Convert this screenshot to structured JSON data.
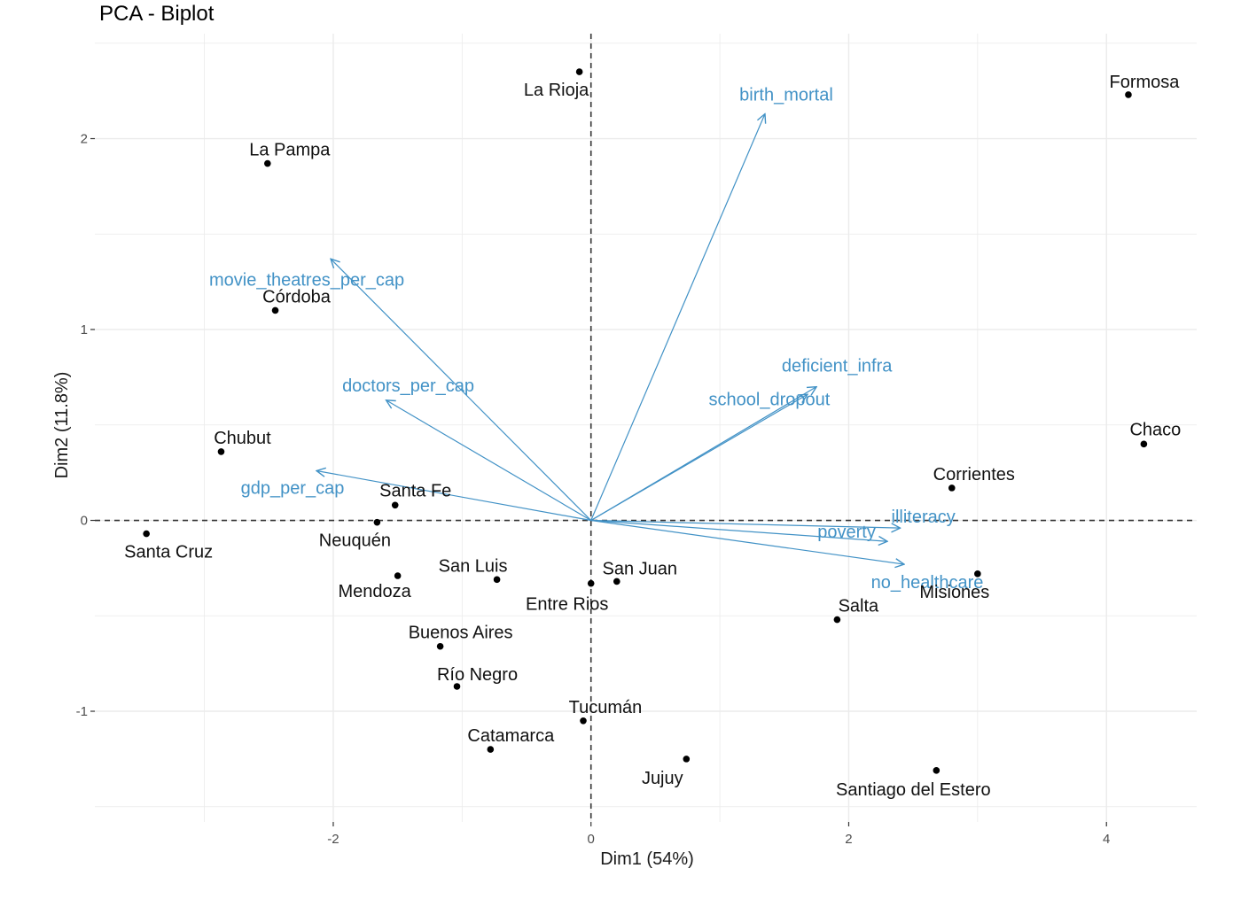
{
  "chart_data": {
    "type": "scatter",
    "title": "PCA - Biplot",
    "xlabel": "Dim1 (54%)",
    "ylabel": "Dim2 (11.8%)",
    "xlim": [
      -3.85,
      4.7
    ],
    "ylim": [
      -1.58,
      2.55
    ],
    "x_ticks": [
      -2,
      0,
      2,
      4
    ],
    "y_ticks": [
      -1,
      0,
      1,
      2
    ],
    "grid": true,
    "reference_lines": [
      0,
      0
    ],
    "colors": {
      "points": "#000000",
      "variables": "#4292c6",
      "grid": "#ebebeb",
      "reference": "#333333"
    },
    "individuals": [
      {
        "name": "La Rioja",
        "x": -0.09,
        "y": 2.35
      },
      {
        "name": "Formosa",
        "x": 4.17,
        "y": 2.23
      },
      {
        "name": "La Pampa",
        "x": -2.51,
        "y": 1.87
      },
      {
        "name": "Córdoba",
        "x": -2.45,
        "y": 1.1
      },
      {
        "name": "Chubut",
        "x": -2.87,
        "y": 0.36
      },
      {
        "name": "Chaco",
        "x": 4.29,
        "y": 0.4
      },
      {
        "name": "Corrientes",
        "x": 2.8,
        "y": 0.17
      },
      {
        "name": "Santa Fe",
        "x": -1.52,
        "y": 0.08
      },
      {
        "name": "Neuquén",
        "x": -1.66,
        "y": -0.01
      },
      {
        "name": "Santa Cruz",
        "x": -3.45,
        "y": -0.07
      },
      {
        "name": "San Luis",
        "x": -0.73,
        "y": -0.31
      },
      {
        "name": "Mendoza",
        "x": -1.5,
        "y": -0.29
      },
      {
        "name": "San Juan",
        "x": 0.2,
        "y": -0.32
      },
      {
        "name": "Entre Rios",
        "x": 0.0,
        "y": -0.33
      },
      {
        "name": "Misiones",
        "x": 3.0,
        "y": -0.28
      },
      {
        "name": "Salta",
        "x": 1.91,
        "y": -0.52
      },
      {
        "name": "Buenos Aires",
        "x": -1.17,
        "y": -0.66
      },
      {
        "name": "Río Negro",
        "x": -1.04,
        "y": -0.87
      },
      {
        "name": "Tucumán",
        "x": -0.06,
        "y": -1.05
      },
      {
        "name": "Catamarca",
        "x": -0.78,
        "y": -1.2
      },
      {
        "name": "Jujuy",
        "x": 0.74,
        "y": -1.25
      },
      {
        "name": "Santiago del Estero",
        "x": 2.68,
        "y": -1.31
      }
    ],
    "variables": [
      {
        "name": "birth_mortal",
        "x": 1.35,
        "y": 2.13
      },
      {
        "name": "movie_theatres_per_cap",
        "x": -2.02,
        "y": 1.37
      },
      {
        "name": "doctors_per_cap",
        "x": -1.59,
        "y": 0.63
      },
      {
        "name": "deficient_infra",
        "x": 1.75,
        "y": 0.7
      },
      {
        "name": "school_dropout",
        "x": 1.68,
        "y": 0.66
      },
      {
        "name": "gdp_per_cap",
        "x": -2.13,
        "y": 0.26
      },
      {
        "name": "illiteracy",
        "x": 2.4,
        "y": -0.04
      },
      {
        "name": "poverty",
        "x": 2.3,
        "y": -0.11
      },
      {
        "name": "no_healthcare",
        "x": 2.43,
        "y": -0.23
      }
    ]
  }
}
